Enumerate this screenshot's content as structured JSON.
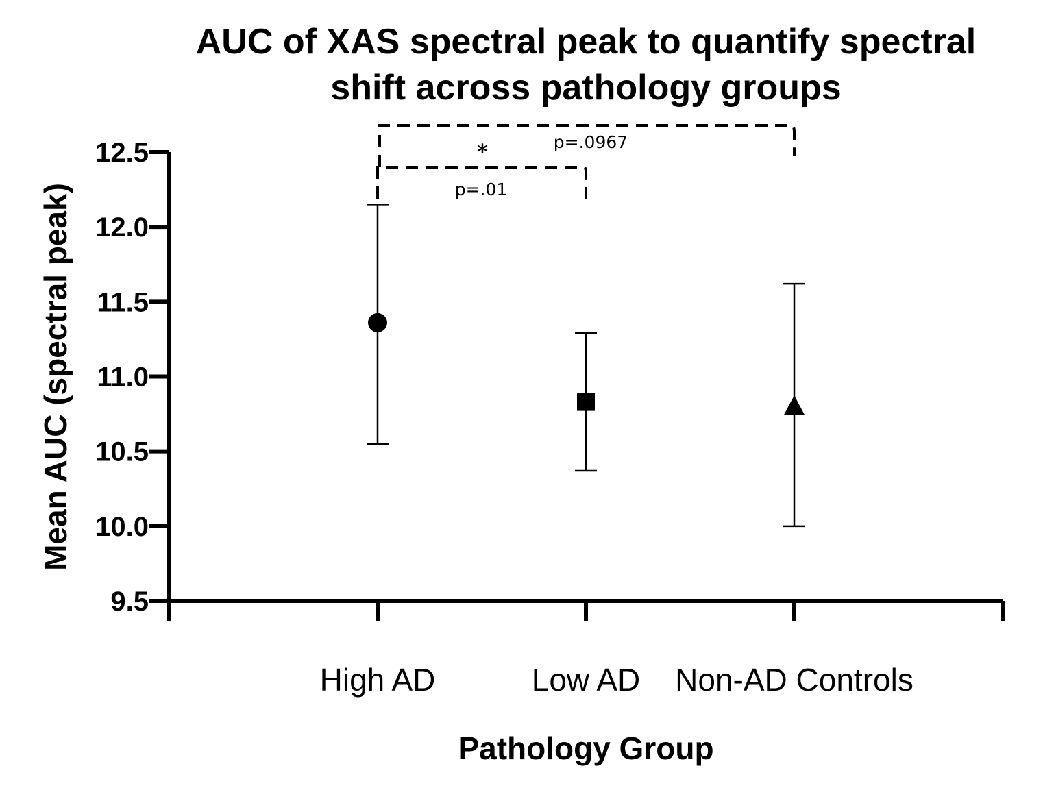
{
  "chart_data": {
    "type": "scatter",
    "title_lines": [
      "AUC of XAS spectral peak to quantify spectral",
      "shift across pathology groups"
    ],
    "xlabel": "Pathology Group",
    "ylabel": "Mean AUC (spectral peak)",
    "ylim": [
      9.5,
      12.5
    ],
    "yticks": [
      9.5,
      10.0,
      10.5,
      11.0,
      11.5,
      12.0,
      12.5
    ],
    "ytick_labels": [
      "9.5",
      "10.0",
      "10.5",
      "11.0",
      "11.5",
      "12.0",
      "12.5"
    ],
    "categories": [
      "High AD",
      "Low AD",
      "Non-AD Controls"
    ],
    "points": [
      {
        "category": "High AD",
        "mean": 11.36,
        "lower": 10.55,
        "upper": 12.15,
        "marker": "circle"
      },
      {
        "category": "Low AD",
        "mean": 10.83,
        "lower": 10.37,
        "upper": 11.29,
        "marker": "square"
      },
      {
        "category": "Non-AD Controls",
        "mean": 10.8,
        "lower": 10.0,
        "upper": 11.62,
        "marker": "triangle"
      }
    ],
    "comparisons": [
      {
        "from": "High AD",
        "to": "Low AD",
        "label": "p=.01",
        "significance": "*"
      },
      {
        "from": "High AD",
        "to": "Non-AD Controls",
        "label": "p=.0967"
      }
    ],
    "grid": false,
    "legend": "none"
  }
}
